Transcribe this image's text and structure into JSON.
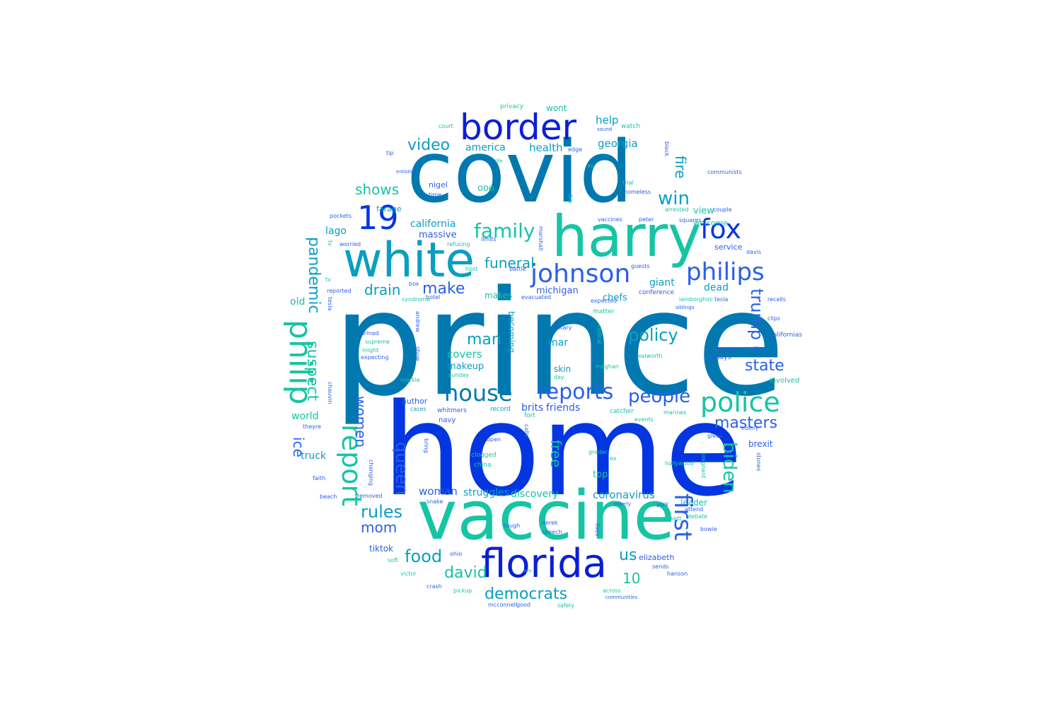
{
  "colors": {
    "c1": "#0278b0",
    "c2": "#0336e0",
    "c3": "#0a9ec2",
    "c4": "#17c4a4",
    "c5": "#2a5fe8",
    "c6": "#0b1fd6"
  },
  "words": [
    {
      "text": "prince",
      "color": "c1"
    },
    {
      "text": "home",
      "color": "c2"
    },
    {
      "text": "covid",
      "color": "c1"
    },
    {
      "text": "vaccine",
      "color": "c4"
    },
    {
      "text": "harry",
      "color": "c4"
    },
    {
      "text": "white",
      "color": "c3"
    },
    {
      "text": "border",
      "color": "c6"
    },
    {
      "text": "florida",
      "color": "c6"
    },
    {
      "text": "19",
      "color": "c2"
    },
    {
      "text": "johnson",
      "color": "c5"
    },
    {
      "text": "philips",
      "color": "c5"
    },
    {
      "text": "fox",
      "color": "c2"
    },
    {
      "text": "police",
      "color": "c4"
    },
    {
      "text": "house",
      "color": "c1"
    },
    {
      "text": "reports",
      "color": "c5"
    },
    {
      "text": "people",
      "color": "c5"
    },
    {
      "text": "family",
      "color": "c4"
    },
    {
      "text": "democrats",
      "color": "c3"
    },
    {
      "text": "philip",
      "color": "c4"
    },
    {
      "text": "report",
      "color": "c4"
    },
    {
      "text": "first",
      "color": "c5"
    },
    {
      "text": "funeral",
      "color": "c3"
    },
    {
      "text": "policy",
      "color": "c3"
    },
    {
      "text": "win",
      "color": "c3"
    },
    {
      "text": "state",
      "color": "c5"
    },
    {
      "text": "masters",
      "color": "c5"
    },
    {
      "text": "food",
      "color": "c3"
    },
    {
      "text": "david",
      "color": "c4"
    },
    {
      "text": "rules",
      "color": "c3"
    },
    {
      "text": "mom",
      "color": "c5"
    },
    {
      "text": "make",
      "color": "c5"
    },
    {
      "text": "video",
      "color": "c3"
    },
    {
      "text": "shows",
      "color": "c4"
    },
    {
      "text": "drain",
      "color": "c3"
    },
    {
      "text": "man",
      "color": "c3"
    },
    {
      "text": "us",
      "color": "c3"
    },
    {
      "text": "10",
      "color": "c4"
    },
    {
      "text": "biden",
      "color": "c4"
    },
    {
      "text": "trump",
      "color": "c5"
    },
    {
      "text": "queen",
      "color": "c5"
    },
    {
      "text": "pandemic",
      "color": "c3"
    },
    {
      "text": "suspect",
      "color": "c4"
    },
    {
      "text": "women",
      "color": "c5"
    },
    {
      "text": "free",
      "color": "c4"
    },
    {
      "text": "ice",
      "color": "c5"
    },
    {
      "text": "dead",
      "color": "c3"
    },
    {
      "text": "fire",
      "color": "c3"
    },
    {
      "text": "georgia",
      "color": "c3"
    },
    {
      "text": "health",
      "color": "c3"
    },
    {
      "text": "america",
      "color": "c3"
    },
    {
      "text": "help",
      "color": "c3"
    },
    {
      "text": "wont",
      "color": "c4"
    },
    {
      "text": "privacy",
      "color": "c4"
    },
    {
      "text": "watch",
      "color": "c4"
    },
    {
      "text": "coronavirus",
      "color": "c3"
    },
    {
      "text": "struggles",
      "color": "c3"
    },
    {
      "text": "discovery",
      "color": "c4"
    },
    {
      "text": "woman",
      "color": "c5"
    },
    {
      "text": "covers",
      "color": "c4"
    },
    {
      "text": "makeup",
      "color": "c3"
    },
    {
      "text": "friends",
      "color": "c5"
    },
    {
      "text": "brits",
      "color": "c5"
    },
    {
      "text": "mar",
      "color": "c3"
    },
    {
      "text": "lago",
      "color": "c3"
    },
    {
      "text": "michigan",
      "color": "c5"
    },
    {
      "text": "makes",
      "color": "c4"
    },
    {
      "text": "chefs",
      "color": "c3"
    },
    {
      "text": "giant",
      "color": "c3"
    },
    {
      "text": "california",
      "color": "c3"
    },
    {
      "text": "massive",
      "color": "c5"
    },
    {
      "text": "view",
      "color": "c4"
    },
    {
      "text": "welcome",
      "color": "c4"
    },
    {
      "text": "service",
      "color": "c5"
    },
    {
      "text": "nigel",
      "color": "c5"
    },
    {
      "text": "farage",
      "color": "c3"
    },
    {
      "text": "ooo",
      "color": "c4"
    },
    {
      "text": "old",
      "color": "c4"
    },
    {
      "text": "world",
      "color": "c4"
    },
    {
      "text": "truck",
      "color": "c3"
    },
    {
      "text": "top",
      "color": "c4"
    },
    {
      "text": "leader",
      "color": "c4"
    },
    {
      "text": "elizabeth",
      "color": "c5"
    },
    {
      "text": "tiktok",
      "color": "c5"
    },
    {
      "text": "author",
      "color": "c5"
    },
    {
      "text": "brexit",
      "color": "c5"
    },
    {
      "text": "skin",
      "color": "c3"
    },
    {
      "text": "becoming",
      "color": "c3"
    },
    {
      "text": "navy",
      "color": "c5"
    },
    {
      "text": "cases",
      "color": "c3"
    },
    {
      "text": "whitmers",
      "color": "c5"
    },
    {
      "text": "record",
      "color": "c3"
    },
    {
      "text": "fort",
      "color": "c4"
    },
    {
      "text": "catcher",
      "color": "c4"
    },
    {
      "text": "events",
      "color": "c4"
    },
    {
      "text": "marines",
      "color": "c4"
    },
    {
      "text": "clogged",
      "color": "c4"
    },
    {
      "text": "china",
      "color": "c4"
    },
    {
      "text": "open",
      "color": "c5"
    },
    {
      "text": "grader",
      "color": "c4"
    },
    {
      "text": "hollywood",
      "color": "c4"
    },
    {
      "text": "gives",
      "color": "c5"
    },
    {
      "text": "pregnant",
      "color": "c4"
    },
    {
      "text": "stones",
      "color": "c5"
    },
    {
      "text": "life",
      "color": "c4"
    },
    {
      "text": "involved",
      "color": "c4"
    },
    {
      "text": "todays",
      "color": "c5"
    },
    {
      "text": "walworth",
      "color": "c4"
    },
    {
      "text": "python",
      "color": "c5"
    },
    {
      "text": "californias",
      "color": "c5"
    },
    {
      "text": "rolling",
      "color": "c5"
    },
    {
      "text": "clips",
      "color": "c5"
    },
    {
      "text": "recalls",
      "color": "c5"
    },
    {
      "text": "lamborghini",
      "color": "c4"
    },
    {
      "text": "conference",
      "color": "c5"
    },
    {
      "text": "evacuated",
      "color": "c5"
    },
    {
      "text": "hotel",
      "color": "c5"
    },
    {
      "text": "battle",
      "color": "c5"
    },
    {
      "text": "host",
      "color": "c4"
    },
    {
      "text": "refusing",
      "color": "c4"
    },
    {
      "text": "worried",
      "color": "c5"
    },
    {
      "text": "pockets",
      "color": "c5"
    },
    {
      "text": "time",
      "color": "c5"
    },
    {
      "text": "tip",
      "color": "c5"
    },
    {
      "text": "court",
      "color": "c4"
    },
    {
      "text": "edge",
      "color": "c5"
    },
    {
      "text": "trial",
      "color": "c4"
    },
    {
      "text": "homeless",
      "color": "c5"
    },
    {
      "text": "vaccines",
      "color": "c5"
    },
    {
      "text": "peter",
      "color": "c5"
    },
    {
      "text": "squares",
      "color": "c5"
    },
    {
      "text": "arrested",
      "color": "c4"
    },
    {
      "text": "couple",
      "color": "c5"
    },
    {
      "text": "davis",
      "color": "c5"
    },
    {
      "text": "communists",
      "color": "c5"
    },
    {
      "text": "black",
      "color": "c5"
    },
    {
      "text": "matter",
      "color": "c4"
    },
    {
      "text": "expected",
      "color": "c5"
    },
    {
      "text": "radical",
      "color": "c4"
    },
    {
      "text": "all",
      "color": "c5"
    },
    {
      "text": "military",
      "color": "c5"
    },
    {
      "text": "supreme",
      "color": "c4"
    },
    {
      "text": "armed",
      "color": "c5"
    },
    {
      "text": "might",
      "color": "c4"
    },
    {
      "text": "expecting",
      "color": "c5"
    },
    {
      "text": "sunday",
      "color": "c4"
    },
    {
      "text": "markle",
      "color": "c4"
    },
    {
      "text": "day",
      "color": "c4"
    },
    {
      "text": "meghan",
      "color": "c4"
    },
    {
      "text": "calls",
      "color": "c5"
    },
    {
      "text": "ex",
      "color": "c4"
    },
    {
      "text": "guests",
      "color": "c5"
    },
    {
      "text": "faith",
      "color": "c5"
    },
    {
      "text": "beach",
      "color": "c5"
    },
    {
      "text": "removed",
      "color": "c5"
    },
    {
      "text": "snake",
      "color": "c5"
    },
    {
      "text": "tough",
      "color": "c5"
    },
    {
      "text": "derek",
      "color": "c5"
    },
    {
      "text": "speech",
      "color": "c5"
    },
    {
      "text": "lives",
      "color": "c5"
    },
    {
      "text": "york",
      "color": "c5"
    },
    {
      "text": "pickett",
      "color": "c4"
    },
    {
      "text": "attend",
      "color": "c5"
    },
    {
      "text": "debate",
      "color": "c4"
    },
    {
      "text": "bowie",
      "color": "c5"
    },
    {
      "text": "ohio",
      "color": "c5"
    },
    {
      "text": "soft",
      "color": "c4"
    },
    {
      "text": "victor",
      "color": "c4"
    },
    {
      "text": "crash",
      "color": "c5"
    },
    {
      "text": "pickup",
      "color": "c4"
    },
    {
      "text": "mcconnell",
      "color": "c5"
    },
    {
      "text": "good",
      "color": "c5"
    },
    {
      "text": "safely",
      "color": "c4"
    },
    {
      "text": "across",
      "color": "c4"
    },
    {
      "text": "sends",
      "color": "c5"
    },
    {
      "text": "hanson",
      "color": "c5"
    },
    {
      "text": "theyre",
      "color": "c5"
    },
    {
      "text": "changing",
      "color": "c5"
    },
    {
      "text": "bring",
      "color": "c5"
    },
    {
      "text": "chauvin",
      "color": "c5"
    },
    {
      "text": "andrew",
      "color": "c5"
    },
    {
      "text": "show",
      "color": "c5"
    },
    {
      "text": "syndrome",
      "color": "c4"
    },
    {
      "text": "marshall",
      "color": "c5"
    },
    {
      "text": "big",
      "color": "c4"
    },
    {
      "text": "tv",
      "color": "c4"
    },
    {
      "text": "reported",
      "color": "c5"
    },
    {
      "text": "box",
      "color": "c5"
    },
    {
      "text": "limits",
      "color": "c5"
    },
    {
      "text": "elderly",
      "color": "c5"
    },
    {
      "text": "siblings",
      "color": "c5"
    },
    {
      "text": "tesla",
      "color": "c5"
    },
    {
      "text": "sound",
      "color": "c5"
    },
    {
      "text": "communities",
      "color": "c5"
    },
    {
      "text": "say",
      "color": "c4"
    },
    {
      "text": "90",
      "color": "c4"
    },
    {
      "text": "enlisting",
      "color": "c5"
    }
  ]
}
